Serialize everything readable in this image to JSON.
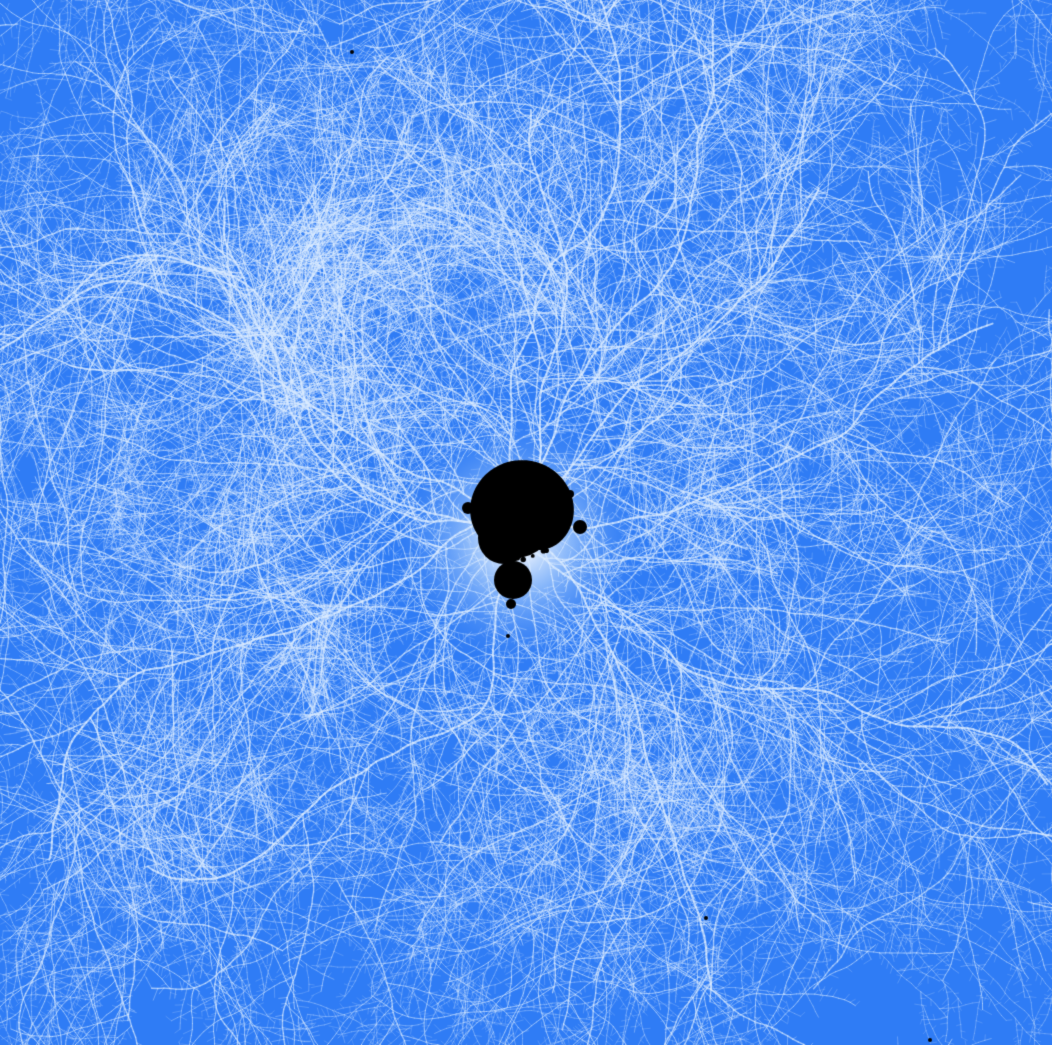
{
  "image": {
    "subject": "mandelbrot-minibrot",
    "colors": {
      "background": "#2f7cf5",
      "filament": "#dcecff",
      "glow": "#ffffff",
      "set_interior": "#000000"
    }
  }
}
